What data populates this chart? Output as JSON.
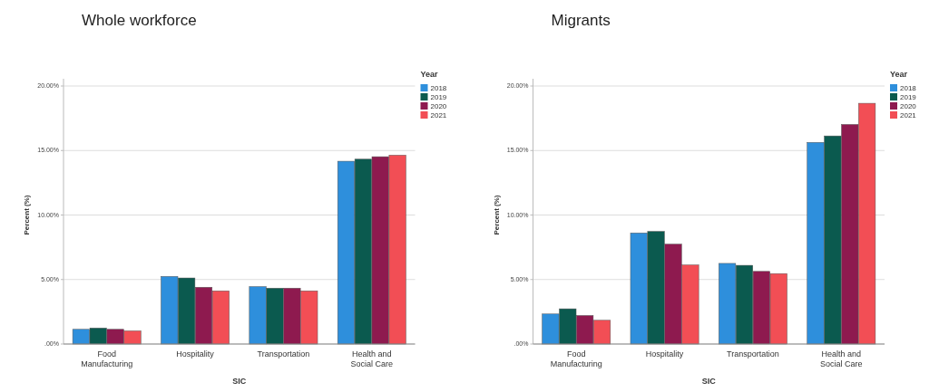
{
  "chart_data": [
    {
      "type": "bar",
      "title": "Whole workforce",
      "xlabel": "SIC",
      "ylabel": "Percent (%)",
      "legend_title": "Year",
      "legend": "top right",
      "grid": "y",
      "categories": [
        "Food Manufacturing",
        "Hospitality",
        "Transportation",
        "Health and Social Care"
      ],
      "ylim": [
        0,
        20
      ],
      "yticks": [
        {
          "value": 0,
          "label": ".00%"
        },
        {
          "value": 5,
          "label": "5.00%"
        },
        {
          "value": 10,
          "label": "10.00%"
        },
        {
          "value": 15,
          "label": "15.00%"
        },
        {
          "value": 20,
          "label": "20.00%"
        }
      ],
      "series": [
        {
          "name": "2018",
          "color": "#2e8fdc",
          "values": [
            1.14,
            5.24,
            4.45,
            14.17
          ]
        },
        {
          "name": "2019",
          "color": "#0b5a4f",
          "values": [
            1.24,
            5.12,
            4.33,
            14.33
          ]
        },
        {
          "name": "2020",
          "color": "#8e1a4f",
          "values": [
            1.14,
            4.4,
            4.33,
            14.52
          ]
        },
        {
          "name": "2021",
          "color": "#f24e55",
          "values": [
            1.02,
            4.12,
            4.12,
            14.64
          ]
        }
      ]
    },
    {
      "type": "bar",
      "title": "Migrants",
      "xlabel": "SIC",
      "ylabel": "Percent (%)",
      "legend_title": "Year",
      "legend": "top right",
      "grid": "y",
      "categories": [
        "Food Manufacturing",
        "Hospitality",
        "Transportation",
        "Health and Social Care"
      ],
      "ylim": [
        0,
        20
      ],
      "yticks": [
        {
          "value": 0,
          "label": ".00%"
        },
        {
          "value": 5,
          "label": "5.00%"
        },
        {
          "value": 10,
          "label": "10.00%"
        },
        {
          "value": 15,
          "label": "15.00%"
        },
        {
          "value": 20,
          "label": "20.00%"
        }
      ],
      "series": [
        {
          "name": "2018",
          "color": "#2e8fdc",
          "values": [
            2.33,
            8.61,
            6.25,
            15.63
          ]
        },
        {
          "name": "2019",
          "color": "#0b5a4f",
          "values": [
            2.73,
            8.73,
            6.1,
            16.13
          ]
        },
        {
          "name": "2020",
          "color": "#8e1a4f",
          "values": [
            2.21,
            7.74,
            5.63,
            17.02
          ]
        },
        {
          "name": "2021",
          "color": "#f24e55",
          "values": [
            1.84,
            6.13,
            5.46,
            18.66
          ]
        }
      ]
    }
  ]
}
